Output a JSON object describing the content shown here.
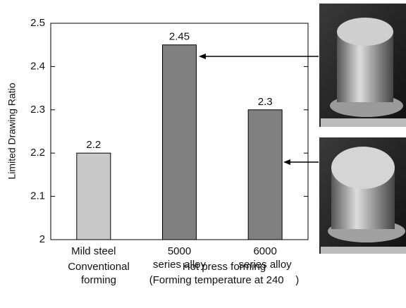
{
  "chart_data": {
    "type": "bar",
    "y_label": "Limited Drawing Ratio",
    "categories": [
      "Mild steel",
      "5000\nseries alloy",
      "6000\nseries alloy"
    ],
    "values": [
      2.2,
      2.45,
      2.3
    ],
    "colors": [
      "#c8c8c8",
      "#808080",
      "#808080"
    ],
    "ylim": [
      2,
      2.5
    ],
    "yticks": [
      2,
      2.1,
      2.2,
      2.3,
      2.4,
      2.5
    ],
    "group_labels": [
      "Conventional\nforming",
      "Hot press forming\n(Forming temperature at 240    )"
    ]
  }
}
